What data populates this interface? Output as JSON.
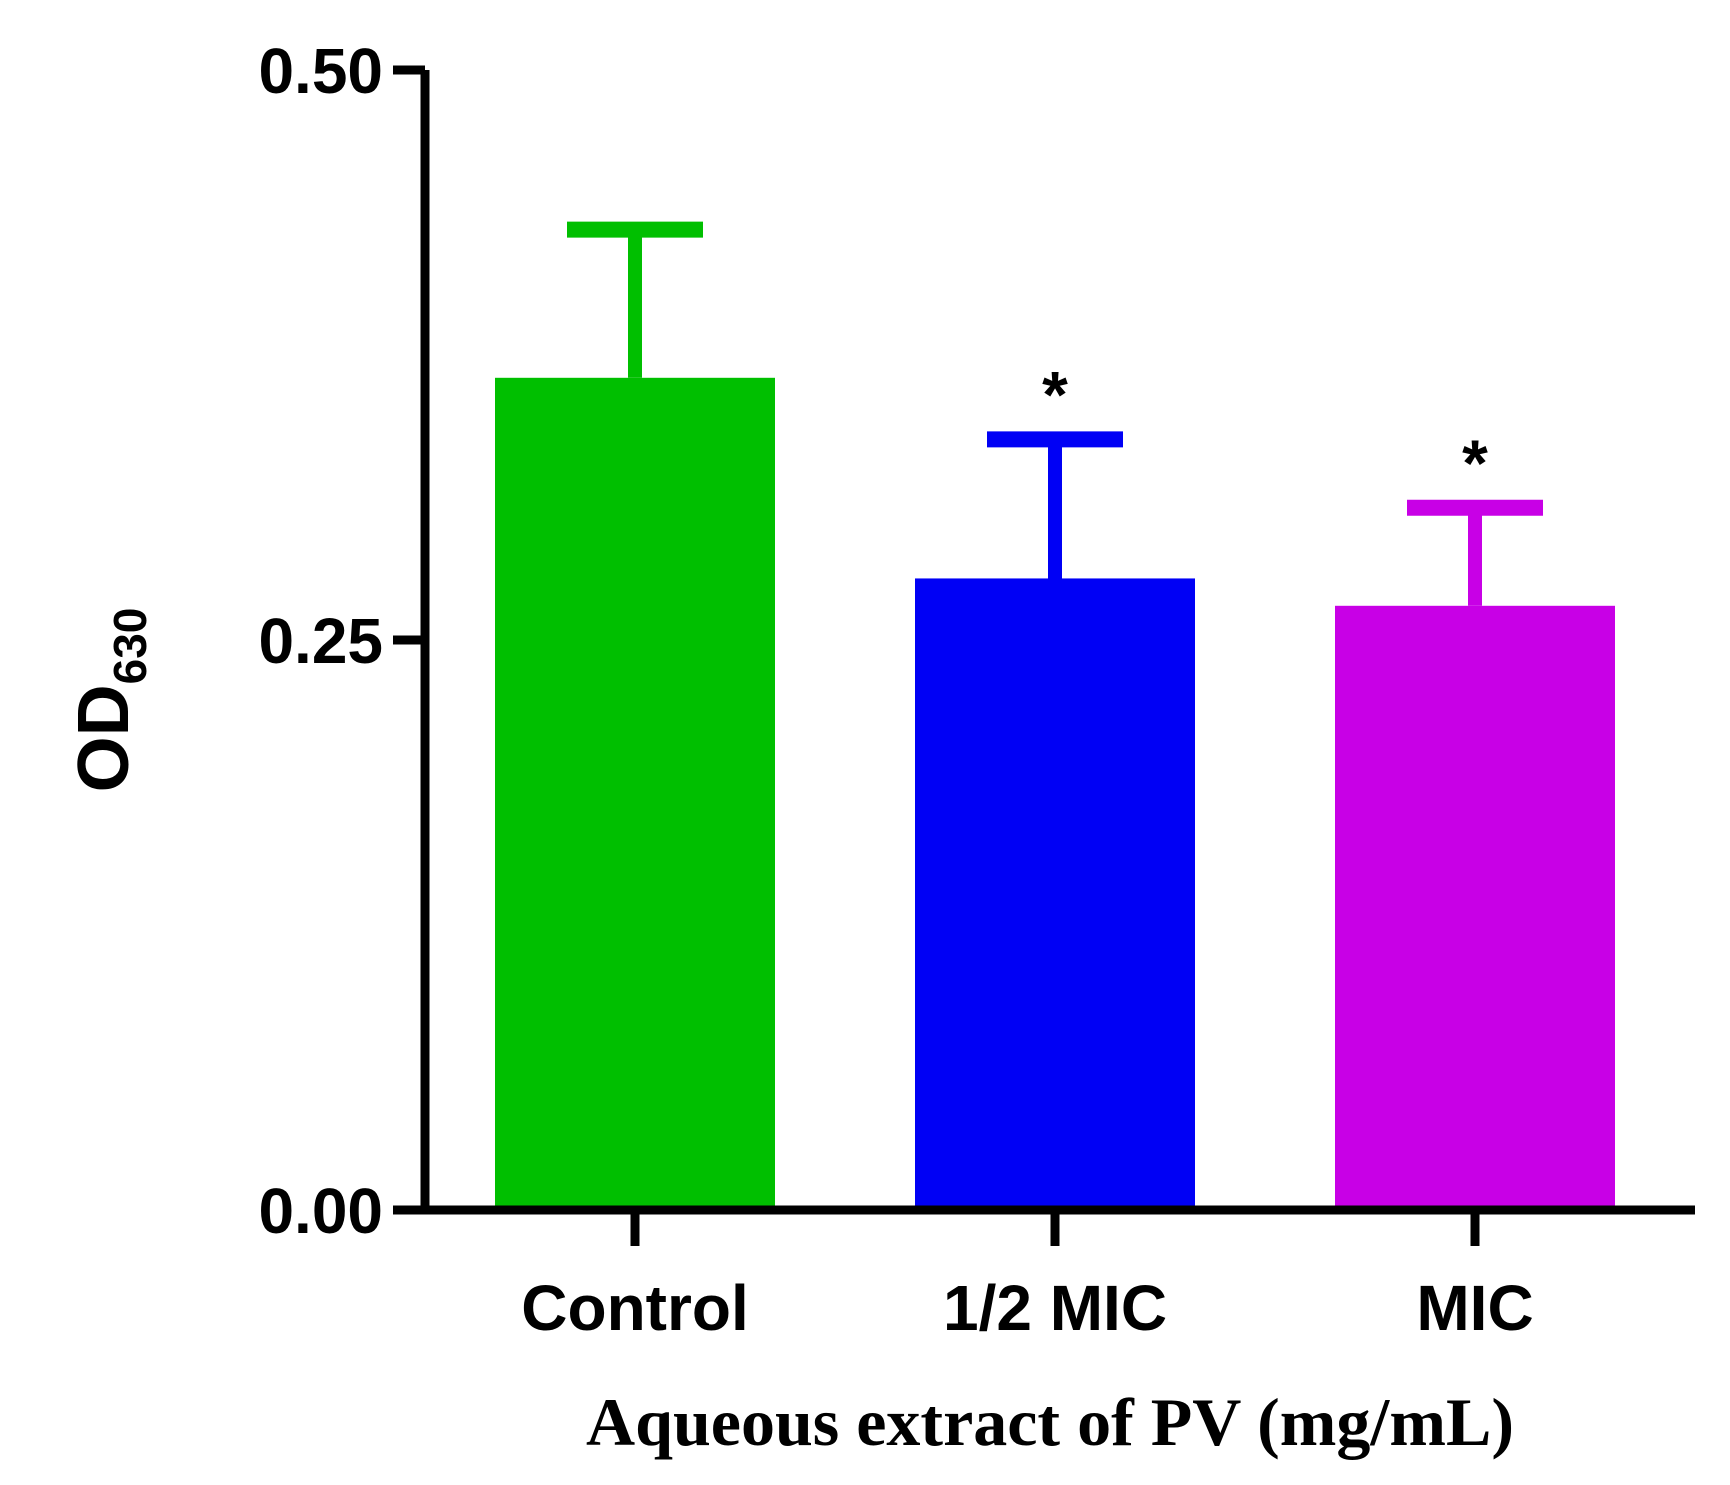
{
  "chart_data": {
    "type": "bar",
    "title": "",
    "categories": [
      "Control",
      "1/2 MIC",
      "MIC"
    ],
    "values": [
      0.365,
      0.277,
      0.265
    ],
    "errors": [
      0.065,
      0.061,
      0.043
    ],
    "significance": [
      "",
      "*",
      "*"
    ],
    "colors": [
      "#00bf00",
      "#0000f5",
      "#c800e6"
    ],
    "ylim": [
      0,
      0.5
    ],
    "yticks": [
      0.0,
      0.25,
      0.5
    ],
    "ytick_labels": [
      "0.00",
      "0.25",
      "0.50"
    ],
    "ylabel": "OD",
    "ylabel_subscript": "630",
    "xlabel": "Aqueous extract of PV (mg/mL)",
    "grid": false,
    "legend": "none"
  }
}
